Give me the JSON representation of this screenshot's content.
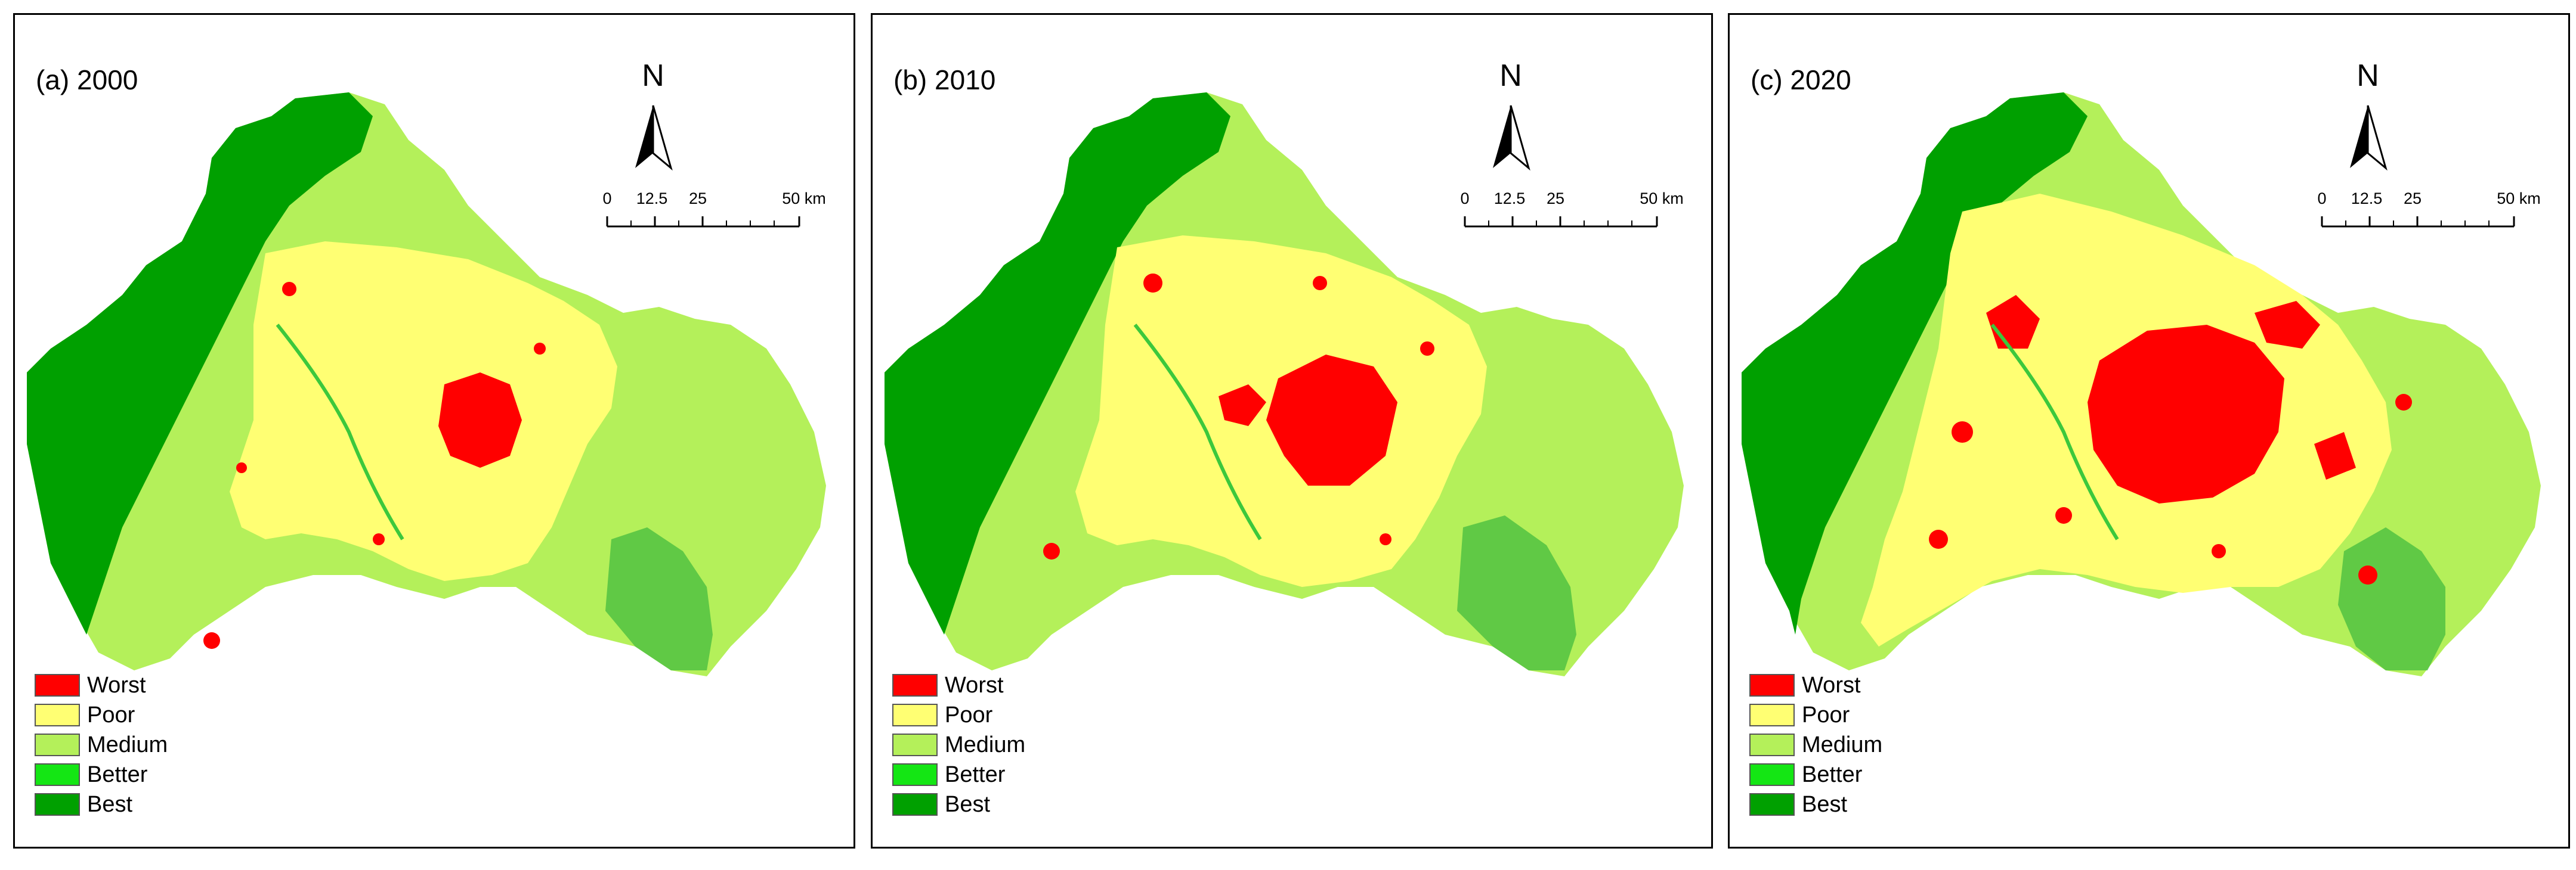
{
  "panels": [
    {
      "title": "(a) 2000",
      "year": 2000
    },
    {
      "title": "(b) 2010",
      "year": 2010
    },
    {
      "title": "(c) 2020",
      "year": 2020
    }
  ],
  "north_arrow": {
    "letter": "N"
  },
  "scale_bar": {
    "labels": [
      "0",
      "12.5",
      "25",
      "50 km"
    ],
    "values_km": [
      0,
      12.5,
      25,
      50
    ]
  },
  "legend": {
    "items": [
      {
        "label": "Worst",
        "color": "#ff0000"
      },
      {
        "label": "Poor",
        "color": "#ffff73"
      },
      {
        "label": "Medium",
        "color": "#b4f05a"
      },
      {
        "label": "Better",
        "color": "#14e614"
      },
      {
        "label": "Best",
        "color": "#00a000"
      }
    ]
  },
  "colors": {
    "worst": "#ff0000",
    "poor": "#ffff73",
    "medium": "#b4f05a",
    "better": "#14e614",
    "best": "#00a000",
    "river": "#3cc83c"
  }
}
